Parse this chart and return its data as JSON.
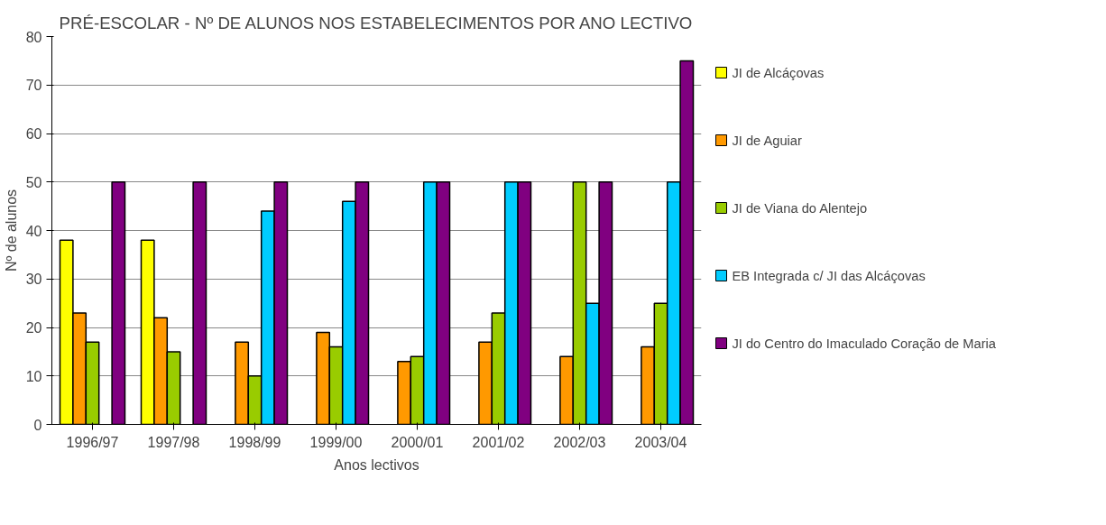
{
  "chart_data": {
    "type": "bar",
    "title": "PRÉ-ESCOLAR - Nº DE ALUNOS NOS ESTABELECIMENTOS POR ANO LECTIVO",
    "xlabel": "Anos lectivos",
    "ylabel": "Nº de alunos",
    "categories": [
      "1996/97",
      "1997/98",
      "1998/99",
      "1999/00",
      "2000/01",
      "2001/02",
      "2002/03",
      "2003/04"
    ],
    "series": [
      {
        "name": "JI de Alcáçovas",
        "color": "#ffff00",
        "values": [
          38,
          38,
          null,
          null,
          null,
          null,
          null,
          null
        ]
      },
      {
        "name": "JI de Aguiar",
        "color": "#ff9900",
        "values": [
          23,
          22,
          17,
          19,
          13,
          17,
          14,
          16
        ]
      },
      {
        "name": "JI de Viana do Alentejo",
        "color": "#99cc00",
        "values": [
          17,
          15,
          10,
          16,
          14,
          23,
          50,
          25
        ]
      },
      {
        "name": "EB Integrada c/ JI das Alcáçovas",
        "color": "#00ccff",
        "values": [
          null,
          null,
          44,
          46,
          50,
          50,
          25,
          50
        ]
      },
      {
        "name": "JI do Centro do Imaculado Coração de Maria",
        "color": "#800080",
        "values": [
          50,
          50,
          50,
          50,
          50,
          50,
          50,
          75
        ]
      }
    ],
    "ylim": [
      0,
      80
    ],
    "yticks": [
      0,
      10,
      20,
      30,
      40,
      50,
      60,
      70,
      80
    ],
    "grid": "y",
    "legend": "right"
  }
}
